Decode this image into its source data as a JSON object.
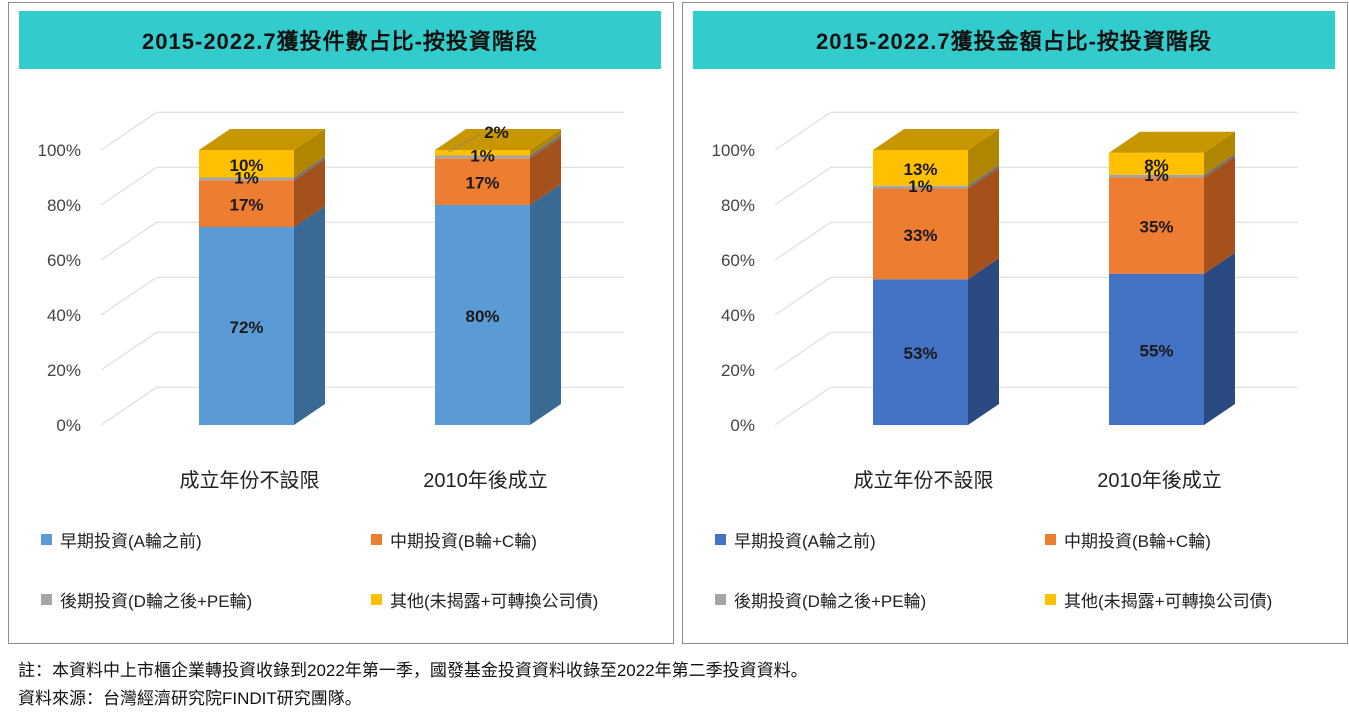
{
  "axis_ticks": [
    "0%",
    "20%",
    "40%",
    "60%",
    "80%",
    "100%"
  ],
  "series_legend": [
    {
      "name": "早期投資(A輪之前)",
      "key": "early"
    },
    {
      "name": "中期投資(B輪+C輪)",
      "key": "mid"
    },
    {
      "name": "後期投資(D輪之後+PE輪)",
      "key": "late"
    },
    {
      "name": "其他(未揭露+可轉換公司債)",
      "key": "other"
    }
  ],
  "chart_data": [
    {
      "type": "bar",
      "stacked": true,
      "three_d": true,
      "title": "2015-2022.7獲投件數占比-按投資階段",
      "categories": [
        "成立年份不設限",
        "2010年後成立"
      ],
      "ylim": [
        0,
        100
      ],
      "grid": true,
      "legend_position": "bottom",
      "series": [
        {
          "name": "早期投資(A輪之前)",
          "values": [
            72,
            80
          ],
          "labels": [
            "72%",
            "80%"
          ],
          "color": "#5b9bd5",
          "side_color": "#3a6a94",
          "top_color": "#7fb3e0"
        },
        {
          "name": "中期投資(B輪+C輪)",
          "values": [
            17,
            17
          ],
          "labels": [
            "17%",
            "17%"
          ],
          "color": "#ed7d31",
          "side_color": "#a4511c",
          "top_color": "#f39a5d"
        },
        {
          "name": "後期投資(D輪之後+PE輪)",
          "values": [
            1,
            1
          ],
          "labels": [
            "1%",
            "1%"
          ],
          "color": "#a5a5a5",
          "side_color": "#727272",
          "top_color": "#c0c0c0"
        },
        {
          "name": "其他(未揭露+可轉換公司債)",
          "values": [
            10,
            2
          ],
          "labels": [
            "10%",
            "2%"
          ],
          "color": "#ffc000",
          "side_color": "#b08600",
          "top_color": "#c89700"
        }
      ]
    },
    {
      "type": "bar",
      "stacked": true,
      "three_d": true,
      "title": "2015-2022.7獲投金額占比-按投資階段",
      "categories": [
        "成立年份不設限",
        "2010年後成立"
      ],
      "ylim": [
        0,
        100
      ],
      "grid": true,
      "legend_position": "bottom",
      "series": [
        {
          "name": "早期投資(A輪之前)",
          "values": [
            53,
            55
          ],
          "labels": [
            "53%",
            "55%"
          ],
          "color": "#4472c4",
          "side_color": "#2c4a82",
          "top_color": "#6a8fd4"
        },
        {
          "name": "中期投資(B輪+C輪)",
          "values": [
            33,
            35
          ],
          "labels": [
            "33%",
            "35%"
          ],
          "color": "#ed7d31",
          "side_color": "#a4511c",
          "top_color": "#f39a5d"
        },
        {
          "name": "後期投資(D輪之後+PE輪)",
          "values": [
            1,
            1
          ],
          "labels": [
            "1%",
            "1%"
          ],
          "color": "#a5a5a5",
          "side_color": "#727272",
          "top_color": "#c0c0c0"
        },
        {
          "name": "其他(未揭露+可轉換公司債)",
          "values": [
            13,
            8
          ],
          "labels": [
            "13%",
            "8%"
          ],
          "color": "#ffc000",
          "side_color": "#b08600",
          "top_color": "#c89700"
        }
      ]
    }
  ],
  "footer": {
    "note": "註：本資料中上市櫃企業轉投資收錄到2022年第一季，國發基金投資資料收錄至2022年第二季投資資料。",
    "source": "資料來源：台灣經濟研究院FINDIT研究團隊。"
  }
}
